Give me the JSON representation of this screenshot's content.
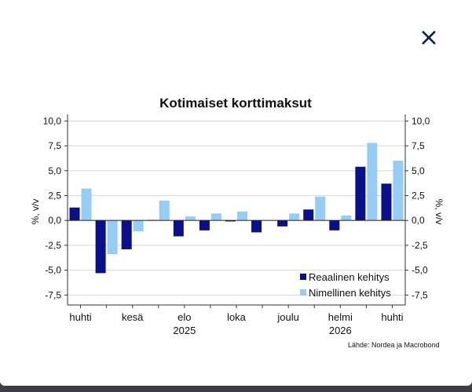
{
  "close_icon": "close-icon",
  "source": "Lähde: Nordea ja Macrobond",
  "chart_data": {
    "type": "bar",
    "title": "Kotimaiset korttimaksut",
    "ylabel_left": "%, v/v",
    "ylabel_right": "%, v/v",
    "ylim": [
      -8.5,
      10.5
    ],
    "yticks": [
      10.0,
      7.5,
      5.0,
      2.5,
      0.0,
      -2.5,
      -5.0,
      -7.5
    ],
    "ytick_labels": [
      "10,0",
      "7,5",
      "5,0",
      "2,5",
      "0,0",
      "-2,5",
      "-5,0",
      "-7,5"
    ],
    "categories": [
      "2025-04",
      "2025-05",
      "2025-06",
      "2025-07",
      "2025-08",
      "2025-09",
      "2025-10",
      "2025-11",
      "2025-12",
      "2026-01",
      "2026-02",
      "2026-03",
      "2026-04"
    ],
    "xtick_labels": [
      {
        "index": 0,
        "label": "huhti"
      },
      {
        "index": 2,
        "label": "kesä"
      },
      {
        "index": 4,
        "label": "elo"
      },
      {
        "index": 6,
        "label": "loka"
      },
      {
        "index": 8,
        "label": "joulu"
      },
      {
        "index": 10,
        "label": "helmi"
      },
      {
        "index": 12,
        "label": "huhti"
      }
    ],
    "year_labels": [
      {
        "index": 4,
        "label": "2025"
      },
      {
        "index": 10,
        "label": "2026"
      }
    ],
    "series": [
      {
        "name": "Reaalinen kehitys",
        "color": "#0a0f8c",
        "values": [
          1.3,
          -5.3,
          -2.9,
          0.05,
          -1.6,
          -1.0,
          -0.1,
          -1.2,
          -0.6,
          1.1,
          -1.0,
          5.4,
          3.7
        ]
      },
      {
        "name": "Nimellinen kehitys",
        "color": "#96cdf7",
        "values": [
          3.2,
          -3.4,
          -1.1,
          2.0,
          0.4,
          0.7,
          0.9,
          0.0,
          0.7,
          2.4,
          0.5,
          7.8,
          6.0
        ]
      }
    ],
    "grid": true,
    "legend_position": "bottom-right"
  }
}
